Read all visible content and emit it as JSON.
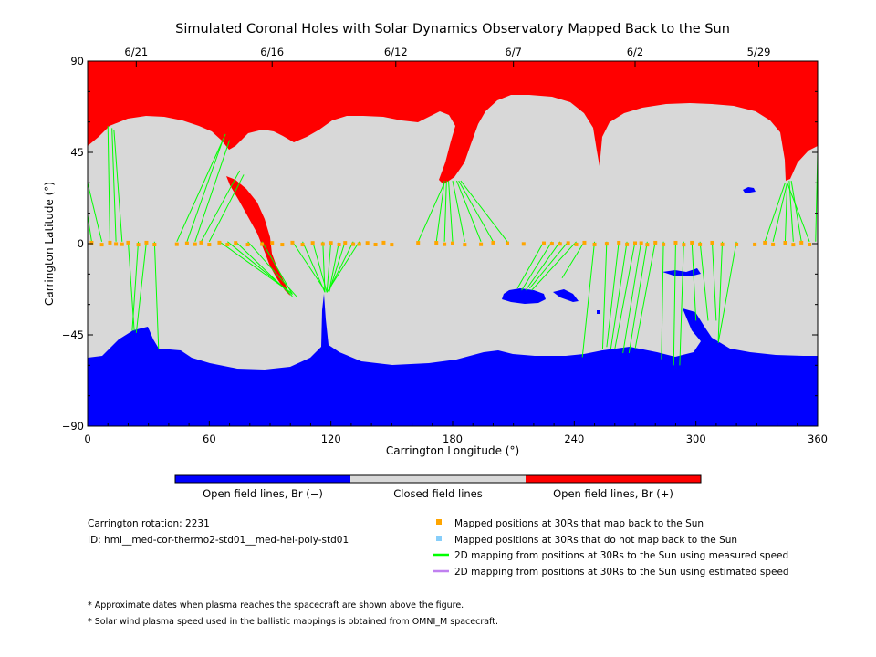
{
  "chart_data": {
    "type": "map",
    "title": "Simulated Coronal Holes with Solar Dynamics Observatory Mapped Back to the Sun",
    "xlabel": "Carrington Longitude (°)",
    "ylabel": "Carrington Latitude (°)",
    "xlim": [
      0,
      360
    ],
    "ylim": [
      -90,
      90
    ],
    "x_ticks": [
      0,
      60,
      120,
      180,
      240,
      300,
      360
    ],
    "y_ticks": [
      -90,
      -45,
      0,
      45,
      90
    ],
    "x_tick_labels": [
      "0",
      "60",
      "120",
      "180",
      "240",
      "300",
      "360"
    ],
    "y_tick_labels": [
      "−90",
      "−45",
      "0",
      "45",
      "90"
    ],
    "top_date_ticks": [
      {
        "lon": 24,
        "label": "6/21"
      },
      {
        "lon": 91,
        "label": "6/16"
      },
      {
        "lon": 152,
        "label": "6/12"
      },
      {
        "lon": 210,
        "label": "6/7"
      },
      {
        "lon": 270,
        "label": "6/2"
      },
      {
        "lon": 331,
        "label": "5/29"
      }
    ],
    "colors": {
      "open_negative": "#0000ff",
      "closed": "#d8d8d8",
      "open_positive": "#ff0000",
      "mapped_back": "#ffa500",
      "not_mapped": "#87cefa",
      "measured_speed": "#00ff00",
      "estimated_speed": "#c080f0"
    },
    "mapped_points_lon": [
      2,
      7,
      11,
      14,
      17,
      20,
      25,
      29,
      33,
      44,
      49,
      53,
      56,
      60,
      65,
      69,
      73,
      79,
      86,
      91,
      96,
      101,
      106,
      111,
      116,
      120,
      124,
      127,
      131,
      134,
      138,
      142,
      146,
      150,
      163,
      172,
      176,
      180,
      186,
      194,
      200,
      207,
      215,
      225,
      229,
      233,
      237,
      241,
      245,
      250,
      256,
      262,
      266,
      270,
      273,
      276,
      280,
      284,
      290,
      294,
      298,
      302,
      308,
      313,
      320,
      329,
      334,
      338,
      344,
      348,
      352,
      356
    ],
    "field_lines": [
      {
        "from": [
          2,
          1
        ],
        "to": [
          0,
          14
        ]
      },
      {
        "from": [
          7,
          1
        ],
        "to": [
          0,
          30
        ]
      },
      {
        "from": [
          11,
          1
        ],
        "to": [
          10,
          58
        ]
      },
      {
        "from": [
          14,
          1
        ],
        "to": [
          12,
          57
        ]
      },
      {
        "from": [
          17,
          1
        ],
        "to": [
          13,
          56
        ]
      },
      {
        "from": [
          20,
          1
        ],
        "to": [
          23,
          -43
        ]
      },
      {
        "from": [
          25,
          1
        ],
        "to": [
          22,
          -43
        ]
      },
      {
        "from": [
          29,
          1
        ],
        "to": [
          24,
          -44
        ]
      },
      {
        "from": [
          33,
          1
        ],
        "to": [
          35,
          -52
        ]
      },
      {
        "from": [
          44,
          1
        ],
        "to": [
          68,
          54
        ]
      },
      {
        "from": [
          49,
          1
        ],
        "to": [
          67,
          52
        ]
      },
      {
        "from": [
          53,
          1
        ],
        "to": [
          70,
          51
        ]
      },
      {
        "from": [
          56,
          1
        ],
        "to": [
          75,
          36
        ]
      },
      {
        "from": [
          60,
          1
        ],
        "to": [
          77,
          34
        ]
      },
      {
        "from": [
          65,
          1
        ],
        "to": [
          100,
          -24
        ]
      },
      {
        "from": [
          69,
          1
        ],
        "to": [
          101,
          -25
        ]
      },
      {
        "from": [
          73,
          1
        ],
        "to": [
          101,
          -26
        ]
      },
      {
        "from": [
          79,
          1
        ],
        "to": [
          103,
          -26
        ]
      },
      {
        "from": [
          86,
          1
        ],
        "to": [
          101,
          -25
        ]
      },
      {
        "from": [
          101,
          1
        ],
        "to": [
          117,
          -23
        ]
      },
      {
        "from": [
          106,
          1
        ],
        "to": [
          117,
          -24
        ]
      },
      {
        "from": [
          111,
          1
        ],
        "to": [
          118,
          -24
        ]
      },
      {
        "from": [
          116,
          1
        ],
        "to": [
          117,
          -24
        ]
      },
      {
        "from": [
          120,
          1
        ],
        "to": [
          118,
          -24
        ]
      },
      {
        "from": [
          124,
          1
        ],
        "to": [
          119,
          -24
        ]
      },
      {
        "from": [
          127,
          1
        ],
        "to": [
          119,
          -24
        ]
      },
      {
        "from": [
          131,
          1
        ],
        "to": [
          119,
          -23
        ]
      },
      {
        "from": [
          134,
          1
        ],
        "to": [
          118,
          -24
        ]
      },
      {
        "from": [
          163,
          1
        ],
        "to": [
          176,
          30
        ]
      },
      {
        "from": [
          172,
          1
        ],
        "to": [
          176,
          31
        ]
      },
      {
        "from": [
          176,
          1
        ],
        "to": [
          177,
          31
        ]
      },
      {
        "from": [
          180,
          1
        ],
        "to": [
          178,
          31
        ]
      },
      {
        "from": [
          186,
          1
        ],
        "to": [
          180,
          31
        ]
      },
      {
        "from": [
          194,
          1
        ],
        "to": [
          182,
          31
        ]
      },
      {
        "from": [
          200,
          1
        ],
        "to": [
          183,
          31
        ]
      },
      {
        "from": [
          207,
          1
        ],
        "to": [
          184,
          31
        ]
      },
      {
        "from": [
          225,
          1
        ],
        "to": [
          212,
          -22
        ]
      },
      {
        "from": [
          229,
          1
        ],
        "to": [
          214,
          -23
        ]
      },
      {
        "from": [
          233,
          1
        ],
        "to": [
          216,
          -23
        ]
      },
      {
        "from": [
          237,
          1
        ],
        "to": [
          218,
          -22
        ]
      },
      {
        "from": [
          241,
          1
        ],
        "to": [
          219,
          -23
        ]
      },
      {
        "from": [
          245,
          1
        ],
        "to": [
          234,
          -17
        ]
      },
      {
        "from": [
          250,
          1
        ],
        "to": [
          244,
          -56
        ]
      },
      {
        "from": [
          256,
          1
        ],
        "to": [
          254,
          -52
        ]
      },
      {
        "from": [
          262,
          1
        ],
        "to": [
          256,
          -51
        ]
      },
      {
        "from": [
          266,
          1
        ],
        "to": [
          258,
          -52
        ]
      },
      {
        "from": [
          270,
          1
        ],
        "to": [
          260,
          -52
        ]
      },
      {
        "from": [
          273,
          1
        ],
        "to": [
          264,
          -54
        ]
      },
      {
        "from": [
          276,
          1
        ],
        "to": [
          267,
          -54
        ]
      },
      {
        "from": [
          280,
          1
        ],
        "to": [
          270,
          -52
        ]
      },
      {
        "from": [
          284,
          1
        ],
        "to": [
          283,
          -57
        ]
      },
      {
        "from": [
          290,
          1
        ],
        "to": [
          289,
          -60
        ]
      },
      {
        "from": [
          294,
          1
        ],
        "to": [
          292,
          -60
        ]
      },
      {
        "from": [
          298,
          1
        ],
        "to": [
          300,
          -38
        ]
      },
      {
        "from": [
          302,
          1
        ],
        "to": [
          306,
          -38
        ]
      },
      {
        "from": [
          308,
          1
        ],
        "to": [
          310,
          -38
        ]
      },
      {
        "from": [
          313,
          1
        ],
        "to": [
          311,
          -48
        ]
      },
      {
        "from": [
          320,
          1
        ],
        "to": [
          311,
          -49
        ]
      },
      {
        "from": [
          334,
          1
        ],
        "to": [
          344,
          30
        ]
      },
      {
        "from": [
          338,
          1
        ],
        "to": [
          345,
          30
        ]
      },
      {
        "from": [
          344,
          1
        ],
        "to": [
          345,
          30
        ]
      },
      {
        "from": [
          348,
          1
        ],
        "to": [
          346,
          31
        ]
      },
      {
        "from": [
          352,
          1
        ],
        "to": [
          347,
          31
        ]
      },
      {
        "from": [
          356,
          1
        ],
        "to": [
          345,
          30
        ]
      },
      {
        "from": [
          359,
          1
        ],
        "to": [
          360,
          45
        ]
      }
    ]
  },
  "colorbar": {
    "labels": [
      "Open field lines, Br (−)",
      "Closed field lines",
      "Open field lines, Br (+)"
    ]
  },
  "info": {
    "rotation": "Carrington rotation: 2231",
    "id": "ID: hmi__med-cor-thermo2-std01__med-hel-poly-std01"
  },
  "legend": {
    "mapped": "Mapped positions at 30Rs that map back to the Sun",
    "not_mapped": "Mapped positions at 30Rs that do not map back to the Sun",
    "measured": "2D mapping from positions at 30Rs to the Sun using measured speed",
    "estimated": "2D mapping from positions at 30Rs to the Sun using estimated speed"
  },
  "notes": [
    "* Approximate dates when plasma reaches the spacecraft are shown above the figure.",
    "* Solar wind plasma speed used in the ballistic mappings is obtained from OMNI_M spacecraft."
  ]
}
